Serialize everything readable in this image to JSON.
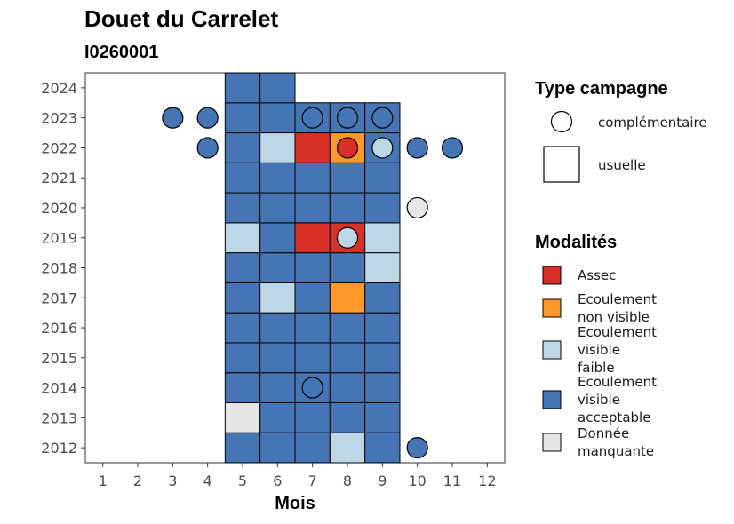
{
  "chart_data": {
    "type": "heatmap",
    "title": "Douet du Carrelet",
    "subtitle": "I0260001",
    "xlabel": "Mois",
    "ylabel": "",
    "x_ticks": [
      "1",
      "2",
      "3",
      "4",
      "5",
      "6",
      "7",
      "8",
      "9",
      "10",
      "11",
      "12"
    ],
    "y_ticks": [
      "2012",
      "2013",
      "2014",
      "2015",
      "2016",
      "2017",
      "2018",
      "2019",
      "2020",
      "2021",
      "2022",
      "2023",
      "2024"
    ],
    "xlim": [
      0.5,
      12.5
    ],
    "ylim": [
      2011.5,
      2024.5
    ],
    "grid": false,
    "legend_placement": "right",
    "modalities": [
      {
        "key": "assec",
        "label_lines": [
          "Assec"
        ],
        "color": "#D73027"
      },
      {
        "key": "nonvisible",
        "label_lines": [
          "Ecoulement",
          "non visible"
        ],
        "color": "#FE9929"
      },
      {
        "key": "faible",
        "label_lines": [
          "Ecoulement",
          "visible",
          "faible"
        ],
        "color": "#BDD7E7"
      },
      {
        "key": "acceptable",
        "label_lines": [
          "Ecoulement",
          "visible",
          "acceptable"
        ],
        "color": "#4575B4"
      },
      {
        "key": "manquante",
        "label_lines": [
          "Donnée",
          "manquante"
        ],
        "color": "#E6E6E6"
      }
    ],
    "campaign_types": [
      {
        "key": "complementaire",
        "label": "complémentaire",
        "shape": "circle"
      },
      {
        "key": "usuelle",
        "label": "usuelle",
        "shape": "square"
      }
    ],
    "legend_titles": {
      "campaign": "Type campagne",
      "modality": "Modalités"
    },
    "usuelle": [
      {
        "year": 2012,
        "month": 5,
        "m": "acceptable"
      },
      {
        "year": 2012,
        "month": 6,
        "m": "acceptable"
      },
      {
        "year": 2012,
        "month": 7,
        "m": "acceptable"
      },
      {
        "year": 2012,
        "month": 8,
        "m": "faible"
      },
      {
        "year": 2012,
        "month": 9,
        "m": "acceptable"
      },
      {
        "year": 2013,
        "month": 5,
        "m": "manquante"
      },
      {
        "year": 2013,
        "month": 6,
        "m": "acceptable"
      },
      {
        "year": 2013,
        "month": 7,
        "m": "acceptable"
      },
      {
        "year": 2013,
        "month": 8,
        "m": "acceptable"
      },
      {
        "year": 2013,
        "month": 9,
        "m": "acceptable"
      },
      {
        "year": 2014,
        "month": 5,
        "m": "acceptable"
      },
      {
        "year": 2014,
        "month": 6,
        "m": "acceptable"
      },
      {
        "year": 2014,
        "month": 7,
        "m": "acceptable"
      },
      {
        "year": 2014,
        "month": 8,
        "m": "acceptable"
      },
      {
        "year": 2014,
        "month": 9,
        "m": "acceptable"
      },
      {
        "year": 2015,
        "month": 5,
        "m": "acceptable"
      },
      {
        "year": 2015,
        "month": 6,
        "m": "acceptable"
      },
      {
        "year": 2015,
        "month": 7,
        "m": "acceptable"
      },
      {
        "year": 2015,
        "month": 8,
        "m": "acceptable"
      },
      {
        "year": 2015,
        "month": 9,
        "m": "acceptable"
      },
      {
        "year": 2016,
        "month": 5,
        "m": "acceptable"
      },
      {
        "year": 2016,
        "month": 6,
        "m": "acceptable"
      },
      {
        "year": 2016,
        "month": 7,
        "m": "acceptable"
      },
      {
        "year": 2016,
        "month": 8,
        "m": "acceptable"
      },
      {
        "year": 2016,
        "month": 9,
        "m": "acceptable"
      },
      {
        "year": 2017,
        "month": 5,
        "m": "acceptable"
      },
      {
        "year": 2017,
        "month": 6,
        "m": "faible"
      },
      {
        "year": 2017,
        "month": 7,
        "m": "acceptable"
      },
      {
        "year": 2017,
        "month": 8,
        "m": "nonvisible"
      },
      {
        "year": 2017,
        "month": 9,
        "m": "acceptable"
      },
      {
        "year": 2018,
        "month": 5,
        "m": "acceptable"
      },
      {
        "year": 2018,
        "month": 6,
        "m": "acceptable"
      },
      {
        "year": 2018,
        "month": 7,
        "m": "acceptable"
      },
      {
        "year": 2018,
        "month": 8,
        "m": "acceptable"
      },
      {
        "year": 2018,
        "month": 9,
        "m": "faible"
      },
      {
        "year": 2019,
        "month": 5,
        "m": "faible"
      },
      {
        "year": 2019,
        "month": 6,
        "m": "acceptable"
      },
      {
        "year": 2019,
        "month": 7,
        "m": "assec"
      },
      {
        "year": 2019,
        "month": 8,
        "m": "assec"
      },
      {
        "year": 2019,
        "month": 9,
        "m": "faible"
      },
      {
        "year": 2020,
        "month": 5,
        "m": "acceptable"
      },
      {
        "year": 2020,
        "month": 6,
        "m": "acceptable"
      },
      {
        "year": 2020,
        "month": 7,
        "m": "acceptable"
      },
      {
        "year": 2020,
        "month": 8,
        "m": "acceptable"
      },
      {
        "year": 2020,
        "month": 9,
        "m": "acceptable"
      },
      {
        "year": 2021,
        "month": 5,
        "m": "acceptable"
      },
      {
        "year": 2021,
        "month": 6,
        "m": "acceptable"
      },
      {
        "year": 2021,
        "month": 7,
        "m": "acceptable"
      },
      {
        "year": 2021,
        "month": 8,
        "m": "acceptable"
      },
      {
        "year": 2021,
        "month": 9,
        "m": "acceptable"
      },
      {
        "year": 2022,
        "month": 5,
        "m": "acceptable"
      },
      {
        "year": 2022,
        "month": 6,
        "m": "faible"
      },
      {
        "year": 2022,
        "month": 7,
        "m": "assec"
      },
      {
        "year": 2022,
        "month": 8,
        "m": "nonvisible"
      },
      {
        "year": 2022,
        "month": 9,
        "m": "acceptable"
      },
      {
        "year": 2023,
        "month": 5,
        "m": "acceptable"
      },
      {
        "year": 2023,
        "month": 6,
        "m": "acceptable"
      },
      {
        "year": 2023,
        "month": 7,
        "m": "acceptable"
      },
      {
        "year": 2023,
        "month": 8,
        "m": "acceptable"
      },
      {
        "year": 2023,
        "month": 9,
        "m": "acceptable"
      },
      {
        "year": 2024,
        "month": 5,
        "m": "acceptable"
      },
      {
        "year": 2024,
        "month": 6,
        "m": "acceptable"
      }
    ],
    "complementaire": [
      {
        "year": 2012,
        "month": 10,
        "m": "acceptable"
      },
      {
        "year": 2014,
        "month": 7,
        "m": "acceptable"
      },
      {
        "year": 2019,
        "month": 8,
        "m": "faible"
      },
      {
        "year": 2020,
        "month": 10,
        "m": "manquante"
      },
      {
        "year": 2022,
        "month": 4,
        "m": "acceptable"
      },
      {
        "year": 2022,
        "month": 8,
        "m": "assec"
      },
      {
        "year": 2022,
        "month": 9,
        "m": "faible"
      },
      {
        "year": 2022,
        "month": 10,
        "m": "acceptable"
      },
      {
        "year": 2022,
        "month": 11,
        "m": "acceptable"
      },
      {
        "year": 2023,
        "month": 3,
        "m": "acceptable"
      },
      {
        "year": 2023,
        "month": 4,
        "m": "acceptable"
      },
      {
        "year": 2023,
        "month": 7,
        "m": "acceptable"
      },
      {
        "year": 2023,
        "month": 8,
        "m": "acceptable"
      },
      {
        "year": 2023,
        "month": 9,
        "m": "acceptable"
      }
    ]
  }
}
